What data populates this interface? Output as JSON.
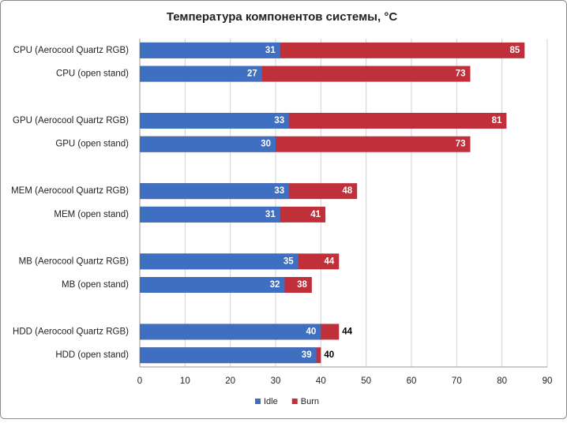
{
  "chart_data": {
    "type": "bar",
    "orientation": "horizontal",
    "overlap": true,
    "title": "Температура компонентов системы, °C",
    "categories": [
      "CPU (Aerocool Quartz RGB)",
      "CPU (open stand)",
      null,
      "GPU (Aerocool Quartz RGB)",
      "GPU (open stand)",
      null,
      "MEM (Aerocool Quartz RGB)",
      "MEM (open stand)",
      null,
      "MB (Aerocool Quartz RGB)",
      "MB (open stand)",
      null,
      "HDD (Aerocool Quartz RGB)",
      "HDD (open stand)"
    ],
    "series": [
      {
        "name": "Burn",
        "color": "#c0303a",
        "values": [
          85,
          73,
          null,
          81,
          73,
          null,
          48,
          41,
          null,
          44,
          38,
          null,
          44,
          40
        ]
      },
      {
        "name": "Idle",
        "color": "#3f6fc0",
        "values": [
          31,
          27,
          null,
          33,
          30,
          null,
          33,
          31,
          null,
          35,
          32,
          null,
          40,
          39
        ]
      }
    ],
    "xlim": [
      0,
      90
    ],
    "xticks": [
      0,
      10,
      20,
      30,
      40,
      50,
      60,
      70,
      80,
      90
    ],
    "grid": true,
    "legend": "bottom"
  }
}
